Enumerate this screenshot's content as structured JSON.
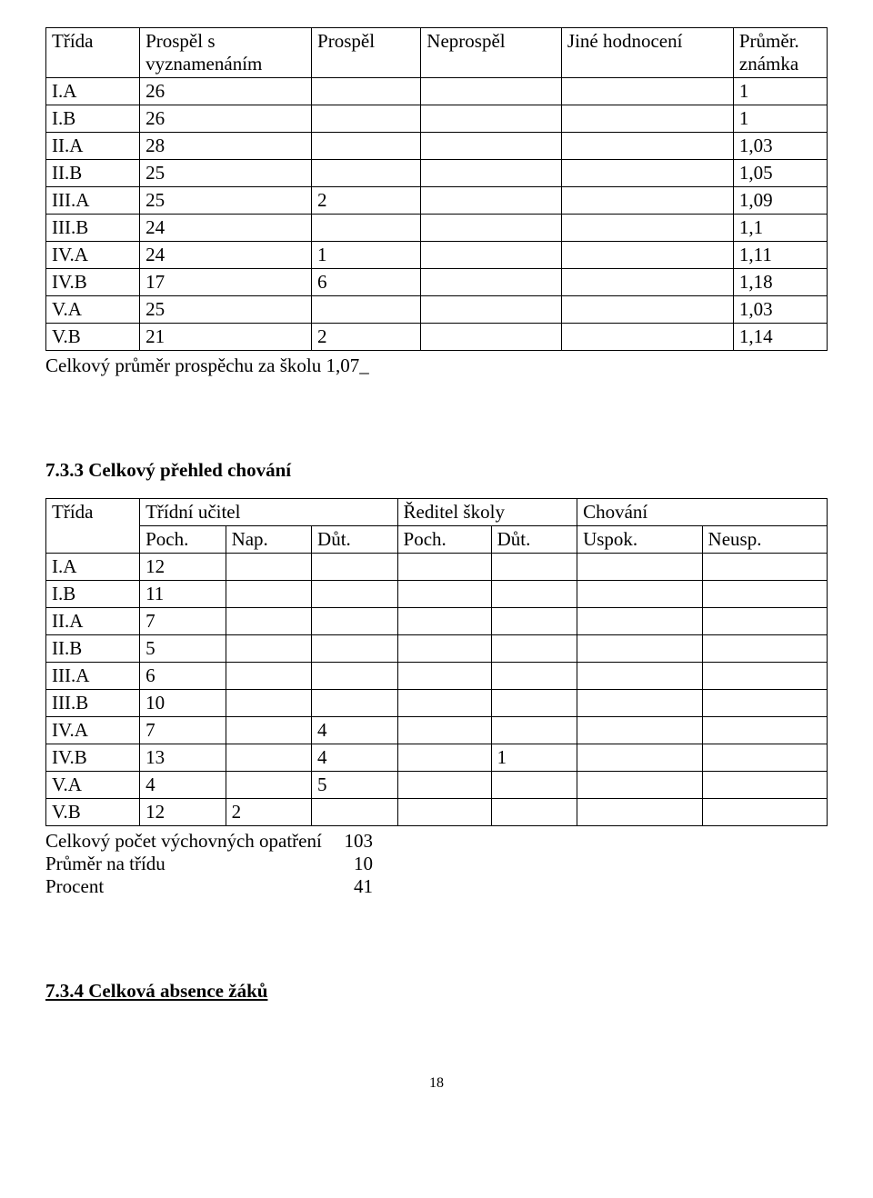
{
  "table1": {
    "columns": [
      "Třída",
      "Prospěl s vyznamenáním",
      "Prospěl",
      "Neprospěl",
      "Jiné hodnocení",
      "Průměr. známka"
    ],
    "rows": [
      [
        "I.A",
        "26",
        "",
        "",
        "",
        "1"
      ],
      [
        "I.B",
        "26",
        "",
        "",
        "",
        "1"
      ],
      [
        "II.A",
        "28",
        "",
        "",
        "",
        "1,03"
      ],
      [
        "II.B",
        "25",
        "",
        "",
        "",
        "1,05"
      ],
      [
        "III.A",
        "25",
        "2",
        "",
        "",
        "1,09"
      ],
      [
        "III.B",
        "24",
        "",
        "",
        "",
        "1,1"
      ],
      [
        "IV.A",
        "24",
        "1",
        "",
        "",
        "1,11"
      ],
      [
        "IV.B",
        "17",
        "6",
        "",
        "",
        "1,18"
      ],
      [
        "V.A",
        "25",
        "",
        "",
        "",
        "1,03"
      ],
      [
        "V.B",
        "21",
        "2",
        "",
        "",
        "1,14"
      ]
    ],
    "summary": "Celkový průměr prospěchu za školu 1,07_"
  },
  "section2": {
    "title": "7.3.3 Celkový přehled chování",
    "head_row1": [
      "Třída",
      "Třídní učitel",
      "Ředitel školy",
      "Chování"
    ],
    "head_row2": [
      "",
      "Poch.",
      "Nap.",
      "Důt.",
      "Poch.",
      "Důt.",
      "Uspok.",
      "Neusp."
    ],
    "rows": [
      [
        "I.A",
        "12",
        "",
        "",
        "",
        "",
        "",
        ""
      ],
      [
        "I.B",
        "11",
        "",
        "",
        "",
        "",
        "",
        ""
      ],
      [
        "II.A",
        "7",
        "",
        "",
        "",
        "",
        "",
        ""
      ],
      [
        "II.B",
        "5",
        "",
        "",
        "",
        "",
        "",
        ""
      ],
      [
        "III.A",
        "6",
        "",
        "",
        "",
        "",
        "",
        ""
      ],
      [
        "III.B",
        "10",
        "",
        "",
        "",
        "",
        "",
        ""
      ],
      [
        "IV.A",
        "7",
        "",
        "4",
        "",
        "",
        "",
        ""
      ],
      [
        "IV.B",
        "13",
        "",
        "4",
        "",
        "1",
        "",
        ""
      ],
      [
        "V.A",
        "4",
        "",
        "5",
        "",
        "",
        "",
        ""
      ],
      [
        "V.B",
        "12",
        "2",
        "",
        "",
        "",
        "",
        ""
      ]
    ],
    "stats": [
      {
        "label": "Celkový počet výchovných opatření",
        "value": "103"
      },
      {
        "label": "Průměr na třídu",
        "value": "10"
      },
      {
        "label": "Procent",
        "value": "41"
      }
    ]
  },
  "section3": {
    "title": "7.3.4 Celková absence žáků"
  },
  "page_number": "18",
  "col_widths": {
    "t1": [
      "12%",
      "22%",
      "14%",
      "18%",
      "22%",
      "12%"
    ],
    "t2": [
      "12%",
      "11%",
      "11%",
      "11%",
      "12%",
      "11%",
      "16%",
      "16%"
    ]
  }
}
